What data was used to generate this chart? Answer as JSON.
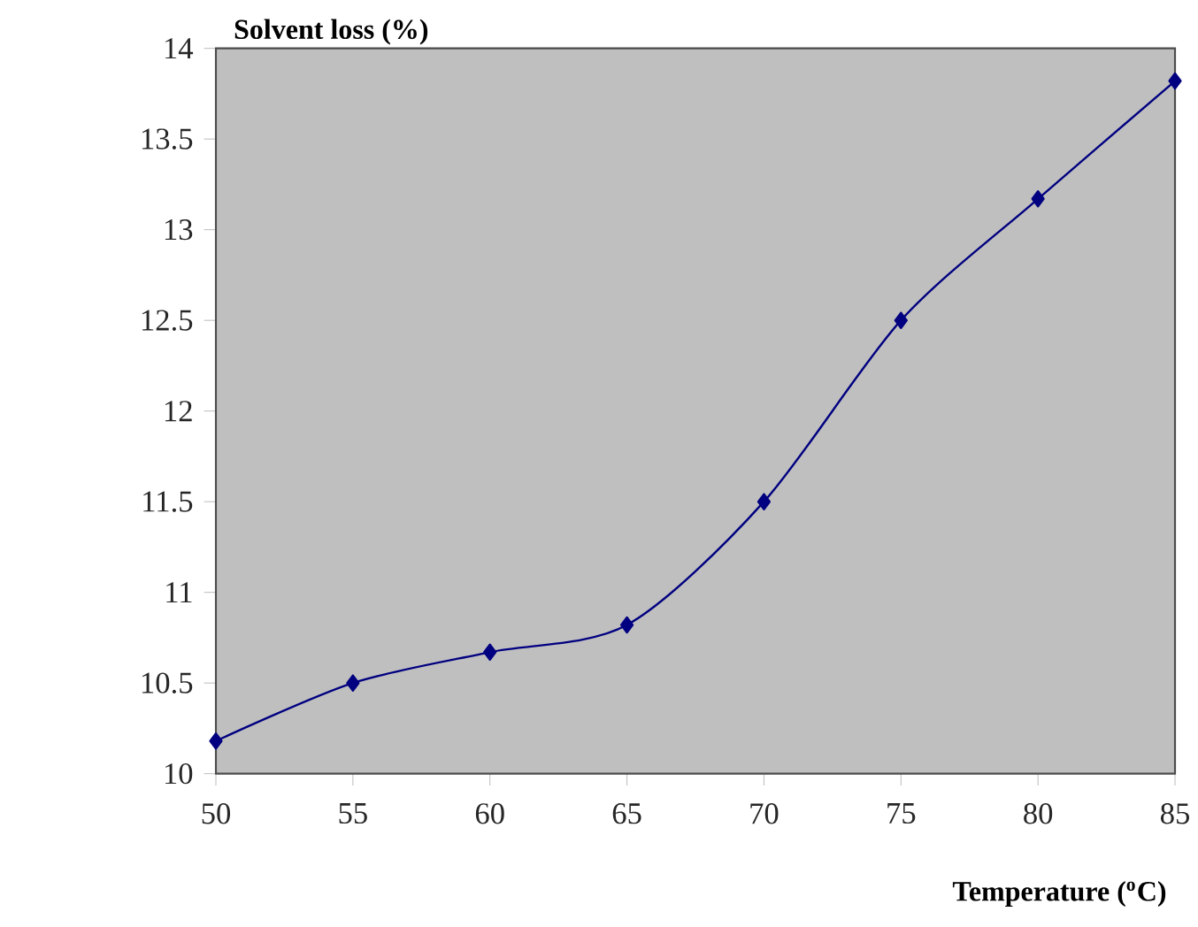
{
  "chart_data": {
    "type": "line",
    "xlabel": "Temperature ($^{o}$C)",
    "ylabel": "Solvent loss (%)",
    "x": [
      50,
      55,
      60,
      65,
      70,
      75,
      80,
      85
    ],
    "series": [
      {
        "color": "#000080",
        "values": [
          10.18,
          10.5,
          10.67,
          10.82,
          11.5,
          12.5,
          13.17,
          13.82
        ]
      }
    ],
    "xlim": [
      50,
      85
    ],
    "ylim": [
      10,
      14
    ],
    "xticks": [
      50,
      55,
      60,
      65,
      70,
      75,
      80,
      85
    ],
    "yticks": [
      10,
      10.5,
      11,
      11.5,
      12,
      12.5,
      13,
      13.5,
      14
    ],
    "marker": "diamond",
    "line_style": "solid"
  }
}
